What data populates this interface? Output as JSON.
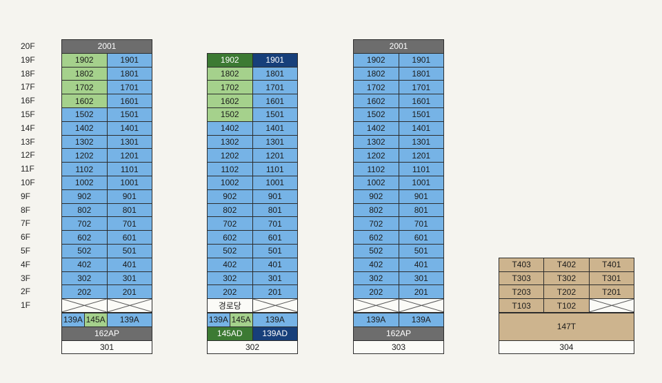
{
  "floors": [
    "20F",
    "19F",
    "18F",
    "17F",
    "16F",
    "15F",
    "14F",
    "13F",
    "12F",
    "11F",
    "10F",
    "9F",
    "8F",
    "7F",
    "6F",
    "5F",
    "4F",
    "3F",
    "2F",
    "1F"
  ],
  "buildings": [
    {
      "name": "301",
      "top_unit": "2001",
      "units": [
        {
          "floor": 19,
          "left": "1902",
          "right": "1901",
          "left_color": "green"
        },
        {
          "floor": 18,
          "left": "1802",
          "right": "1801",
          "left_color": "green"
        },
        {
          "floor": 17,
          "left": "1702",
          "right": "1701",
          "left_color": "green"
        },
        {
          "floor": 16,
          "left": "1602",
          "right": "1601",
          "left_color": "green"
        },
        {
          "floor": 15,
          "left": "1502",
          "right": "1501"
        },
        {
          "floor": 14,
          "left": "1402",
          "right": "1401"
        },
        {
          "floor": 13,
          "left": "1302",
          "right": "1301"
        },
        {
          "floor": 12,
          "left": "1202",
          "right": "1201"
        },
        {
          "floor": 11,
          "left": "1102",
          "right": "1101"
        },
        {
          "floor": 10,
          "left": "1002",
          "right": "1001"
        },
        {
          "floor": 9,
          "left": "902",
          "right": "901"
        },
        {
          "floor": 8,
          "left": "802",
          "right": "801"
        },
        {
          "floor": 7,
          "left": "702",
          "right": "701"
        },
        {
          "floor": 6,
          "left": "602",
          "right": "601"
        },
        {
          "floor": 5,
          "left": "502",
          "right": "501"
        },
        {
          "floor": 4,
          "left": "402",
          "right": "401"
        },
        {
          "floor": 3,
          "left": "302",
          "right": "301"
        },
        {
          "floor": 2,
          "left": "202",
          "right": "201"
        }
      ],
      "first_floor": {
        "left": "",
        "right": ""
      },
      "type_row": [
        {
          "label": "139A",
          "span": 0.5,
          "color": "blue"
        },
        {
          "label": "145A",
          "span": 0.5,
          "color": "green"
        },
        {
          "label": "139A",
          "span": 1,
          "color": "blue"
        }
      ],
      "area_row": [
        {
          "label": "162AP",
          "span": 2,
          "color": "gray"
        }
      ]
    },
    {
      "name": "302",
      "top_unit": "",
      "units": [
        {
          "floor": 19,
          "left": "1902",
          "right": "1901",
          "left_color": "dgreen",
          "right_color": "navy"
        },
        {
          "floor": 18,
          "left": "1802",
          "right": "1801",
          "left_color": "green"
        },
        {
          "floor": 17,
          "left": "1702",
          "right": "1701",
          "left_color": "green"
        },
        {
          "floor": 16,
          "left": "1602",
          "right": "1601",
          "left_color": "green"
        },
        {
          "floor": 15,
          "left": "1502",
          "right": "1501",
          "left_color": "green"
        },
        {
          "floor": 14,
          "left": "1402",
          "right": "1401"
        },
        {
          "floor": 13,
          "left": "1302",
          "right": "1301"
        },
        {
          "floor": 12,
          "left": "1202",
          "right": "1201"
        },
        {
          "floor": 11,
          "left": "1102",
          "right": "1101"
        },
        {
          "floor": 10,
          "left": "1002",
          "right": "1001"
        },
        {
          "floor": 9,
          "left": "902",
          "right": "901"
        },
        {
          "floor": 8,
          "left": "802",
          "right": "801"
        },
        {
          "floor": 7,
          "left": "702",
          "right": "701"
        },
        {
          "floor": 6,
          "left": "602",
          "right": "601"
        },
        {
          "floor": 5,
          "left": "502",
          "right": "501"
        },
        {
          "floor": 4,
          "left": "402",
          "right": "401"
        },
        {
          "floor": 3,
          "left": "302",
          "right": "301"
        },
        {
          "floor": 2,
          "left": "202",
          "right": "201"
        }
      ],
      "first_floor": {
        "left": "경로당",
        "right": ""
      },
      "type_row": [
        {
          "label": "139A",
          "span": 0.5,
          "color": "blue"
        },
        {
          "label": "145A",
          "span": 0.5,
          "color": "green"
        },
        {
          "label": "139A",
          "span": 1,
          "color": "blue"
        }
      ],
      "area_row": [
        {
          "label": "145AD",
          "span": 1,
          "color": "dgreen"
        },
        {
          "label": "139AD",
          "span": 1,
          "color": "navy"
        }
      ]
    },
    {
      "name": "303",
      "top_unit": "2001",
      "units": [
        {
          "floor": 19,
          "left": "1902",
          "right": "1901"
        },
        {
          "floor": 18,
          "left": "1802",
          "right": "1801"
        },
        {
          "floor": 17,
          "left": "1702",
          "right": "1701"
        },
        {
          "floor": 16,
          "left": "1602",
          "right": "1601"
        },
        {
          "floor": 15,
          "left": "1502",
          "right": "1501"
        },
        {
          "floor": 14,
          "left": "1402",
          "right": "1401"
        },
        {
          "floor": 13,
          "left": "1302",
          "right": "1301"
        },
        {
          "floor": 12,
          "left": "1202",
          "right": "1201"
        },
        {
          "floor": 11,
          "left": "1102",
          "right": "1101"
        },
        {
          "floor": 10,
          "left": "1002",
          "right": "1001"
        },
        {
          "floor": 9,
          "left": "902",
          "right": "901"
        },
        {
          "floor": 8,
          "left": "802",
          "right": "801"
        },
        {
          "floor": 7,
          "left": "702",
          "right": "701"
        },
        {
          "floor": 6,
          "left": "602",
          "right": "601"
        },
        {
          "floor": 5,
          "left": "502",
          "right": "501"
        },
        {
          "floor": 4,
          "left": "402",
          "right": "401"
        },
        {
          "floor": 3,
          "left": "302",
          "right": "301"
        },
        {
          "floor": 2,
          "left": "202",
          "right": "201"
        }
      ],
      "first_floor": {
        "left": "",
        "right": ""
      },
      "type_row": [
        {
          "label": "139A",
          "span": 1,
          "color": "blue"
        },
        {
          "label": "139A",
          "span": 1,
          "color": "blue"
        }
      ],
      "area_row": [
        {
          "label": "162AP",
          "span": 2,
          "color": "gray"
        }
      ]
    }
  ],
  "building_304": {
    "name": "304",
    "rows": [
      {
        "floor": 4,
        "units": [
          "T403",
          "T402",
          "T401"
        ]
      },
      {
        "floor": 3,
        "units": [
          "T303",
          "T302",
          "T301"
        ]
      },
      {
        "floor": 2,
        "units": [
          "T203",
          "T202",
          "T201"
        ]
      },
      {
        "floor": 1,
        "units": [
          "T103",
          "T102",
          ""
        ]
      }
    ],
    "type_label": "147T"
  },
  "colors": {
    "blue": "#76b3e6",
    "green": "#a5d18c",
    "dgreen": "#3c7a33",
    "navy": "#173f7a",
    "gray": "#6d6d6d",
    "tan": "#cdb48e",
    "white": "#fbfbf7"
  }
}
